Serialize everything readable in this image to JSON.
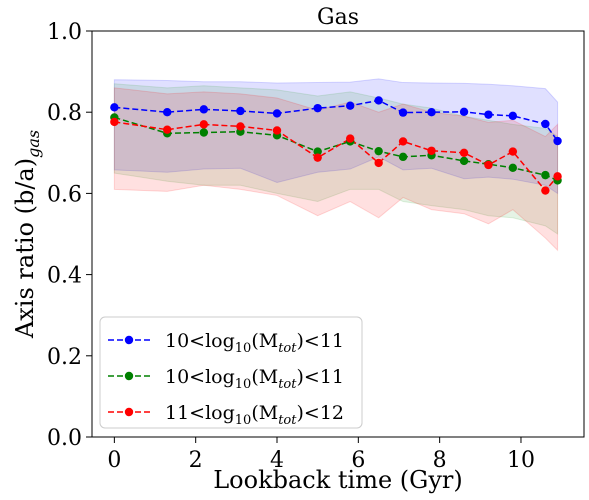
{
  "chart_data": {
    "type": "line",
    "title": "Gas",
    "xlabel": "Lookback time (Gyr)",
    "ylabel_main": "Axis ratio (b/a)",
    "ylabel_sub": "gas",
    "xlim": [
      -0.55,
      11.55
    ],
    "ylim": [
      0.0,
      1.0
    ],
    "xticks": [
      0,
      2,
      4,
      6,
      8,
      10
    ],
    "yticks": [
      0.0,
      0.2,
      0.4,
      0.6,
      0.8,
      1.0
    ],
    "xtick_labels": [
      "0",
      "2",
      "4",
      "6",
      "8",
      "10"
    ],
    "ytick_labels": [
      "0.0",
      "0.2",
      "0.4",
      "0.6",
      "0.8",
      "1.0"
    ],
    "grid": false,
    "legend_position": "lower-left",
    "series": [
      {
        "legend_pre": "10<log",
        "legend_sub10": "10",
        "legend_mid": "(M",
        "legend_subtot": "tot",
        "legend_post": ")<11",
        "color": "#0000ff",
        "band_color": "#0000ff",
        "x": [
          0,
          1.3,
          2.2,
          3.1,
          4.0,
          5.0,
          5.8,
          6.5,
          7.1,
          7.8,
          8.6,
          9.2,
          9.8,
          10.6,
          10.9
        ],
        "y": [
          0.812,
          0.8,
          0.807,
          0.803,
          0.797,
          0.81,
          0.816,
          0.829,
          0.799,
          0.8,
          0.801,
          0.794,
          0.791,
          0.771,
          0.729
        ],
        "upper": [
          0.88,
          0.878,
          0.875,
          0.875,
          0.872,
          0.873,
          0.874,
          0.882,
          0.873,
          0.872,
          0.871,
          0.869,
          0.865,
          0.858,
          0.825
        ],
        "lower": [
          0.658,
          0.652,
          0.66,
          0.662,
          0.627,
          0.652,
          0.66,
          0.69,
          0.658,
          0.662,
          0.636,
          0.64,
          0.635,
          0.62,
          0.6
        ]
      },
      {
        "legend_pre": "10<log",
        "legend_sub10": "10",
        "legend_mid": "(M",
        "legend_subtot": "tot",
        "legend_post": ")<11",
        "color": "#008000",
        "band_color": "#2ca02c",
        "x": [
          0,
          1.3,
          2.2,
          3.1,
          4.0,
          5.0,
          5.8,
          6.5,
          7.1,
          7.8,
          8.6,
          9.2,
          9.8,
          10.6,
          10.9
        ],
        "y": [
          0.787,
          0.748,
          0.75,
          0.752,
          0.743,
          0.703,
          0.728,
          0.704,
          0.69,
          0.694,
          0.68,
          0.672,
          0.663,
          0.645,
          0.632
        ],
        "upper": [
          0.87,
          0.86,
          0.865,
          0.86,
          0.855,
          0.84,
          0.85,
          0.835,
          0.82,
          0.81,
          0.79,
          0.78,
          0.77,
          0.76,
          0.74
        ],
        "lower": [
          0.65,
          0.63,
          0.62,
          0.62,
          0.6,
          0.58,
          0.61,
          0.61,
          0.58,
          0.57,
          0.56,
          0.545,
          0.54,
          0.52,
          0.5
        ]
      },
      {
        "legend_pre": "11<log",
        "legend_sub10": "10",
        "legend_mid": "(M",
        "legend_subtot": "tot",
        "legend_post": ")<12",
        "color": "#ff0000",
        "band_color": "#ff0000",
        "x": [
          0,
          1.3,
          2.2,
          3.1,
          4.0,
          5.0,
          5.8,
          6.5,
          7.1,
          7.8,
          8.6,
          9.2,
          9.8,
          10.6,
          10.9
        ],
        "y": [
          0.776,
          0.757,
          0.77,
          0.765,
          0.755,
          0.688,
          0.735,
          0.675,
          0.728,
          0.705,
          0.7,
          0.67,
          0.703,
          0.607,
          0.642
        ],
        "upper": [
          0.86,
          0.845,
          0.85,
          0.845,
          0.835,
          0.805,
          0.825,
          0.8,
          0.82,
          0.8,
          0.79,
          0.775,
          0.78,
          0.74,
          0.77
        ],
        "lower": [
          0.61,
          0.605,
          0.62,
          0.61,
          0.595,
          0.545,
          0.58,
          0.54,
          0.59,
          0.56,
          0.55,
          0.525,
          0.56,
          0.49,
          0.46
        ]
      }
    ]
  }
}
